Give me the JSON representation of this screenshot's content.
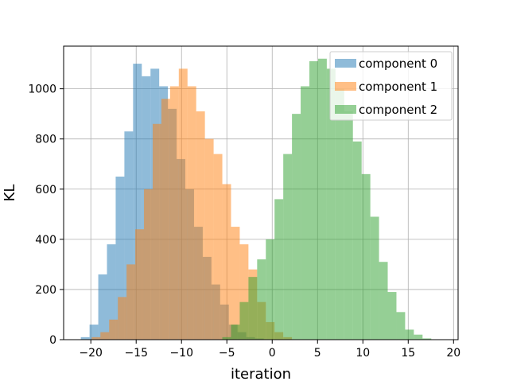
{
  "chart_data": {
    "type": "bar",
    "title": "",
    "xlabel": "iteration",
    "ylabel": "KL",
    "xlim": [
      -23,
      20.5
    ],
    "ylim": [
      0,
      1170
    ],
    "xticks": [
      -20,
      -15,
      -10,
      -5,
      0,
      5,
      10,
      15,
      20
    ],
    "yticks": [
      0,
      200,
      400,
      600,
      800,
      1000
    ],
    "xtick_labels": [
      "−20",
      "−15",
      "−10",
      "−5",
      "0",
      "5",
      "10",
      "15",
      "20"
    ],
    "ytick_labels": [
      "0",
      "200",
      "400",
      "600",
      "800",
      "1000"
    ],
    "grid": true,
    "legend_position": "top-right",
    "bin_width": 0.96,
    "series": [
      {
        "name": "component 0",
        "color": "#1f77b4",
        "opacity": 0.5,
        "bin_start": -21.1,
        "counts": [
          10,
          60,
          260,
          380,
          650,
          830,
          1100,
          1050,
          1080,
          1010,
          920,
          720,
          600,
          450,
          330,
          220,
          140,
          60,
          30,
          10,
          5
        ]
      },
      {
        "name": "component 1",
        "color": "#ff7f0e",
        "opacity": 0.5,
        "bin_start": -19.9,
        "counts": [
          10,
          30,
          80,
          170,
          300,
          440,
          600,
          860,
          960,
          1010,
          1080,
          1010,
          910,
          800,
          740,
          620,
          450,
          380,
          280,
          150,
          70,
          30,
          10
        ]
      },
      {
        "name": "component 2",
        "color": "#2ca02c",
        "opacity": 0.5,
        "bin_start": -5.5,
        "counts": [
          10,
          60,
          150,
          250,
          320,
          400,
          560,
          740,
          900,
          1010,
          1110,
          1120,
          1080,
          1000,
          910,
          790,
          660,
          490,
          310,
          190,
          110,
          40,
          20,
          5
        ]
      }
    ]
  }
}
